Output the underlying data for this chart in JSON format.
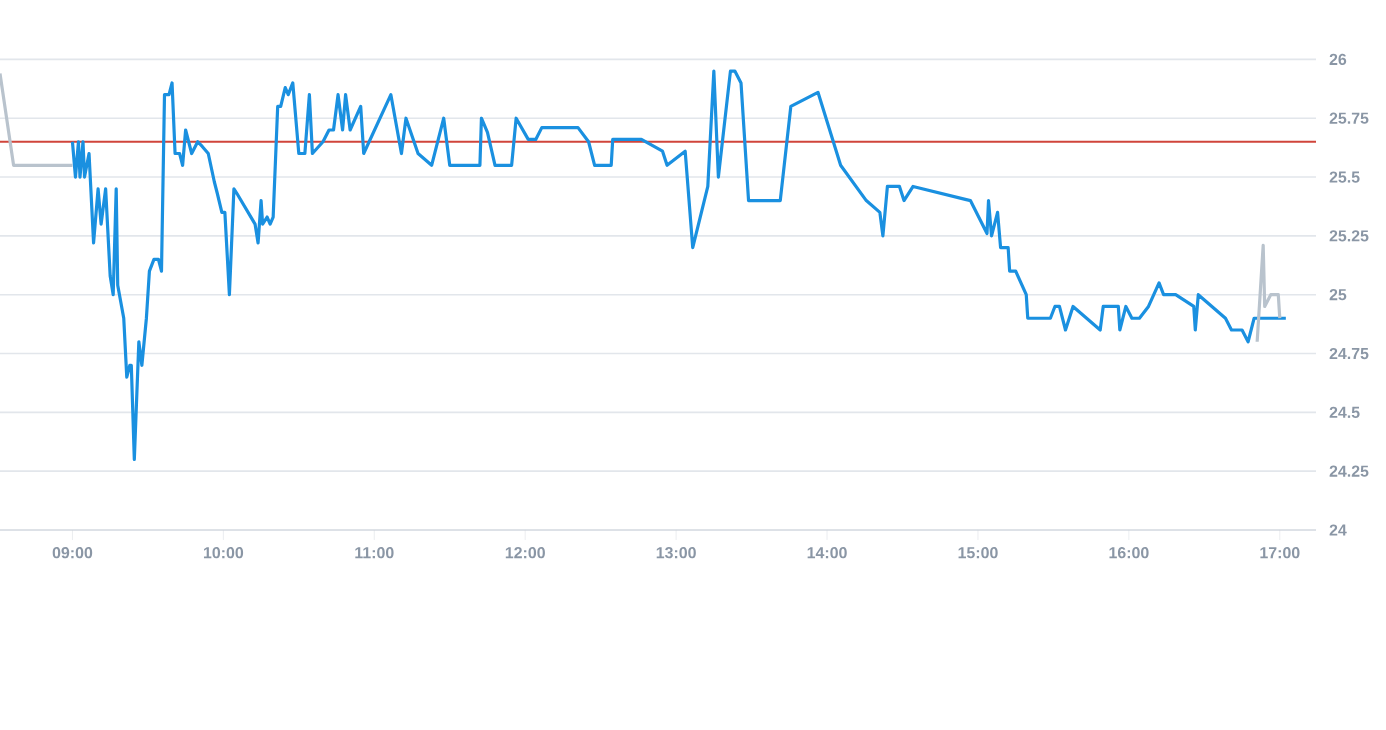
{
  "chart_data": {
    "type": "line",
    "xlim": [
      8.52,
      17.24
    ],
    "ylim": [
      24,
      26
    ],
    "xticks": [
      {
        "value": 9,
        "label": "09:00"
      },
      {
        "value": 10,
        "label": "10:00"
      },
      {
        "value": 11,
        "label": "11:00"
      },
      {
        "value": 12,
        "label": "12:00"
      },
      {
        "value": 13,
        "label": "13:00"
      },
      {
        "value": 14,
        "label": "14:00"
      },
      {
        "value": 15,
        "label": "15:00"
      },
      {
        "value": 16,
        "label": "16:00"
      },
      {
        "value": 17,
        "label": "17:00"
      }
    ],
    "yticks": [
      24,
      24.25,
      24.5,
      24.75,
      25,
      25.25,
      25.5,
      25.75,
      26
    ],
    "grid": "y",
    "marker": "none",
    "line_style": "solid",
    "ref_lines": [
      {
        "axis": "y",
        "value": 25.65,
        "color": "#d0453b"
      }
    ],
    "series": [
      {
        "color": "#b9c3cd",
        "x": [
          8.52,
          8.61,
          9.0
        ],
        "values": [
          25.94,
          25.55,
          25.55
        ]
      },
      {
        "color": "#1a90e0",
        "x": [
          9.0,
          9.02,
          9.04,
          9.05,
          9.07,
          9.08,
          9.11,
          9.14,
          9.17,
          9.19,
          9.22,
          9.25,
          9.27,
          9.29,
          9.3,
          9.34,
          9.36,
          9.38,
          9.39,
          9.41,
          9.44,
          9.46,
          9.49,
          9.51,
          9.54,
          9.57,
          9.59,
          9.61,
          9.64,
          9.66,
          9.68,
          9.71,
          9.73,
          9.75,
          9.79,
          9.83,
          9.86,
          9.9,
          9.94,
          9.96,
          9.99,
          10.01,
          10.04,
          10.07,
          10.09,
          10.21,
          10.23,
          10.25,
          10.26,
          10.29,
          10.31,
          10.33,
          10.36,
          10.38,
          10.41,
          10.43,
          10.46,
          10.5,
          10.54,
          10.57,
          10.59,
          10.66,
          10.7,
          10.73,
          10.76,
          10.79,
          10.81,
          10.84,
          10.91,
          10.93,
          11.11,
          11.18,
          11.21,
          11.29,
          11.38,
          11.46,
          11.5,
          11.7,
          11.71,
          11.75,
          11.8,
          11.91,
          11.94,
          12.02,
          12.07,
          12.11,
          12.35,
          12.42,
          12.46,
          12.57,
          12.58,
          12.77,
          12.91,
          12.94,
          13.06,
          13.11,
          13.21,
          13.25,
          13.28,
          13.36,
          13.39,
          13.43,
          13.48,
          13.69,
          13.76,
          13.94,
          14.09,
          14.26,
          14.35,
          14.37,
          14.4,
          14.48,
          14.51,
          14.57,
          14.95,
          15.06,
          15.07,
          15.09,
          15.13,
          15.15,
          15.2,
          15.21,
          15.25,
          15.32,
          15.33,
          15.48,
          15.51,
          15.54,
          15.58,
          15.63,
          15.81,
          15.83,
          15.93,
          15.94,
          15.98,
          16.02,
          16.07,
          16.13,
          16.2,
          16.23,
          16.31,
          16.43,
          16.44,
          16.46,
          16.64,
          16.68,
          16.75,
          16.79,
          16.83,
          17.04
        ],
        "values": [
          25.65,
          25.5,
          25.65,
          25.5,
          25.65,
          25.5,
          25.6,
          25.22,
          25.45,
          25.3,
          25.45,
          25.08,
          25.0,
          25.45,
          25.04,
          24.9,
          24.65,
          24.7,
          24.7,
          24.3,
          24.8,
          24.7,
          24.9,
          25.1,
          25.15,
          25.15,
          25.1,
          25.85,
          25.85,
          25.9,
          25.6,
          25.6,
          25.55,
          25.7,
          25.6,
          25.65,
          25.63,
          25.6,
          25.48,
          25.43,
          25.35,
          25.35,
          25.0,
          25.45,
          25.43,
          25.3,
          25.22,
          25.4,
          25.3,
          25.33,
          25.3,
          25.33,
          25.8,
          25.8,
          25.88,
          25.85,
          25.9,
          25.6,
          25.6,
          25.85,
          25.6,
          25.65,
          25.7,
          25.7,
          25.85,
          25.7,
          25.85,
          25.7,
          25.8,
          25.6,
          25.85,
          25.6,
          25.75,
          25.6,
          25.55,
          25.75,
          25.55,
          25.55,
          25.75,
          25.69,
          25.55,
          25.55,
          25.75,
          25.66,
          25.66,
          25.71,
          25.71,
          25.65,
          25.55,
          25.55,
          25.66,
          25.66,
          25.61,
          25.55,
          25.61,
          25.2,
          25.46,
          25.95,
          25.5,
          25.95,
          25.95,
          25.9,
          25.4,
          25.4,
          25.8,
          25.86,
          25.55,
          25.4,
          25.35,
          25.25,
          25.46,
          25.46,
          25.4,
          25.46,
          25.4,
          25.26,
          25.4,
          25.25,
          25.35,
          25.2,
          25.2,
          25.1,
          25.1,
          25.0,
          24.9,
          24.9,
          24.95,
          24.95,
          24.85,
          24.95,
          24.85,
          24.95,
          24.95,
          24.85,
          24.95,
          24.9,
          24.9,
          24.95,
          25.05,
          25.0,
          25.0,
          24.95,
          24.85,
          25.0,
          24.9,
          24.85,
          24.85,
          24.8,
          24.9,
          24.9
        ]
      },
      {
        "color": "#b9c3cd",
        "x": [
          16.85,
          16.89,
          16.9,
          16.94,
          16.99,
          17.0
        ],
        "values": [
          24.8,
          25.21,
          24.95,
          25.0,
          25.0,
          24.9
        ]
      }
    ]
  }
}
